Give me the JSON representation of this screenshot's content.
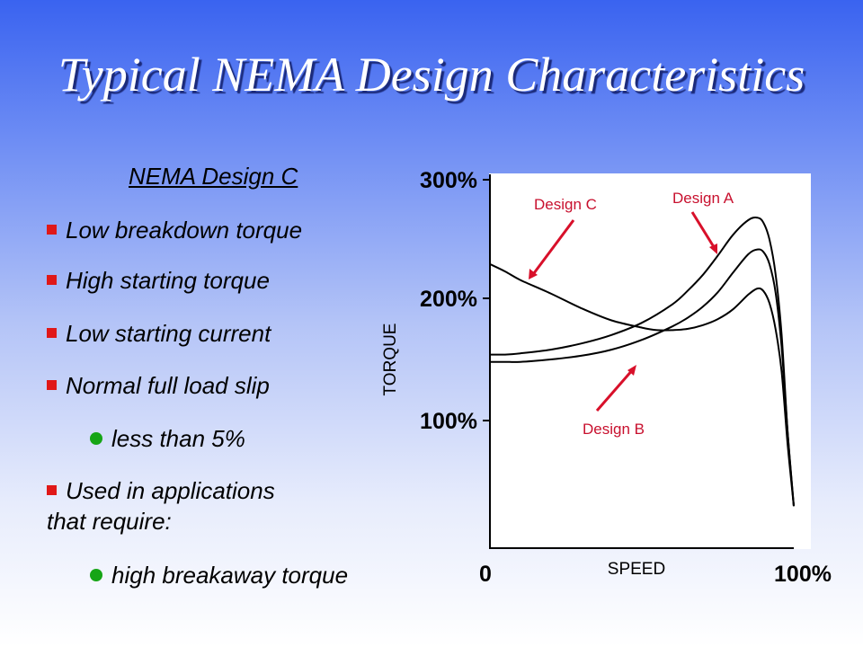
{
  "slide": {
    "title": "Typical NEMA Design Characteristics",
    "heading": "NEMA Design C",
    "bullets": [
      "Low breakdown torque",
      "High starting torque",
      "Low starting current",
      "Normal full load slip",
      "less than 5%",
      "Used in applications",
      "that require:",
      "high breakaway torque"
    ],
    "colors": {
      "bullet_square": "#e01818",
      "bullet_dot": "#16a516",
      "annotation": "#c8102e",
      "title_shadow": "#1b2a7a"
    }
  },
  "chart_data": {
    "type": "line",
    "ylabel": "TORQUE",
    "xlabel": "SPEED",
    "y_ticks": [
      "100%",
      "200%",
      "300%"
    ],
    "x_ticks": [
      "0",
      "100%"
    ],
    "xlim": [
      0,
      100
    ],
    "ylim": [
      0,
      300
    ],
    "series": [
      {
        "name": "Design A",
        "x": [
          0,
          5,
          10,
          20,
          30,
          40,
          50,
          60,
          65,
          70,
          75,
          80,
          85,
          88,
          90,
          92,
          94,
          96,
          98,
          100
        ],
        "y": [
          154,
          154,
          155,
          158,
          163,
          170,
          180,
          195,
          206,
          219,
          235,
          252,
          264,
          266,
          262,
          248,
          220,
          170,
          90,
          30
        ]
      },
      {
        "name": "Design B",
        "x": [
          0,
          5,
          10,
          20,
          30,
          40,
          50,
          60,
          65,
          70,
          75,
          80,
          85,
          88,
          90,
          92,
          94,
          96,
          98,
          100
        ],
        "y": [
          148,
          148,
          148,
          150,
          153,
          158,
          166,
          177,
          184,
          193,
          205,
          221,
          236,
          240,
          238,
          228,
          205,
          160,
          90,
          30
        ]
      },
      {
        "name": "Design C",
        "x": [
          0,
          5,
          10,
          20,
          30,
          40,
          50,
          55,
          60,
          65,
          70,
          75,
          80,
          85,
          88,
          90,
          92,
          94,
          96,
          98,
          100
        ],
        "y": [
          228,
          222,
          215,
          204,
          192,
          182,
          176,
          174,
          174,
          175,
          178,
          183,
          191,
          203,
          208,
          206,
          196,
          175,
          140,
          80,
          30
        ]
      }
    ],
    "annotations": [
      "Design C",
      "Design A",
      "Design B"
    ]
  }
}
